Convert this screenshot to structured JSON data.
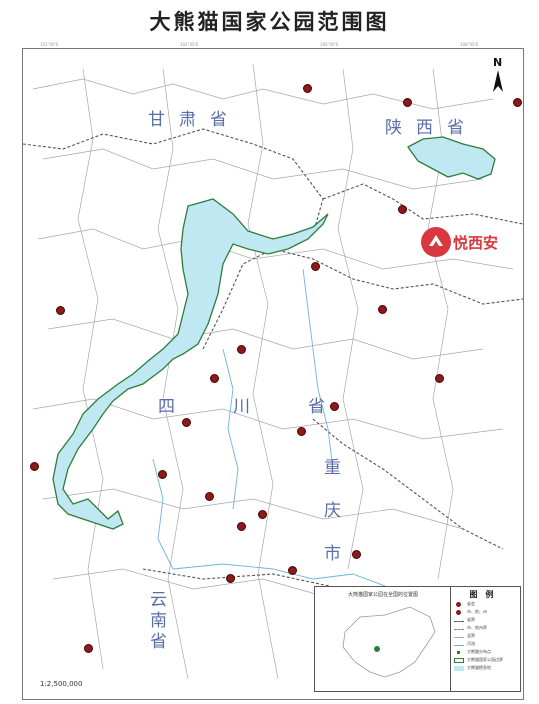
{
  "title": "大熊猫国家公园范围图",
  "north_label": "N",
  "scale_text": "1:2,500,000",
  "watermark_text": "悦西安",
  "regions": {
    "gansu": "甘肃省",
    "shaanxi": "陕西省",
    "sichuan": "四川省",
    "chongqing": "重庆市",
    "yunnan": "云南省"
  },
  "legend": {
    "title": "图例",
    "items": [
      "省会",
      "市、地、州",
      "省界",
      "市、地州界",
      "县界",
      "河流",
      "大熊猫分布点",
      "大熊猫国家公园边界",
      "大熊猫栖息地"
    ]
  },
  "inset_title": "大熊猫国家公园在全国的位置图",
  "colors": {
    "park_fill": "#bfe8f2",
    "park_border": "#2e7d3a",
    "river": "#69b7d8",
    "boundary": "#999999",
    "city": "#8b1a1a"
  }
}
